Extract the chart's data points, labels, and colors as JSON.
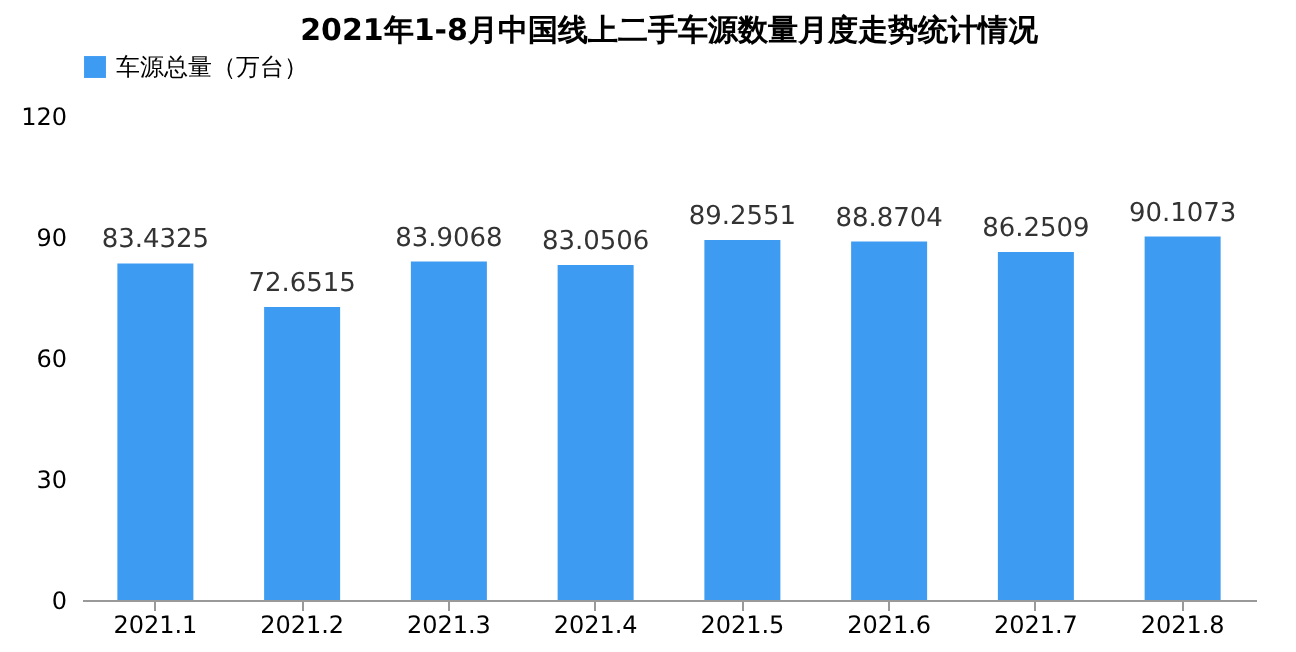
{
  "chart_data": {
    "type": "bar",
    "title": "2021年1-8月中国线上二手车源数量月度走势统计情况",
    "categories": [
      "2021.1",
      "2021.2",
      "2021.3",
      "2021.4",
      "2021.5",
      "2021.6",
      "2021.7",
      "2021.8"
    ],
    "series": [
      {
        "name": "车源总量（万台）",
        "color": "#3d9bf2",
        "values": [
          83.4325,
          72.6515,
          83.9068,
          83.0506,
          89.2551,
          88.8704,
          86.2509,
          90.1073
        ]
      }
    ],
    "ylim": [
      0,
      120
    ],
    "yticks": [
      0,
      30,
      60,
      90,
      120
    ],
    "grid": false,
    "legend": "top",
    "data_labels": true
  }
}
